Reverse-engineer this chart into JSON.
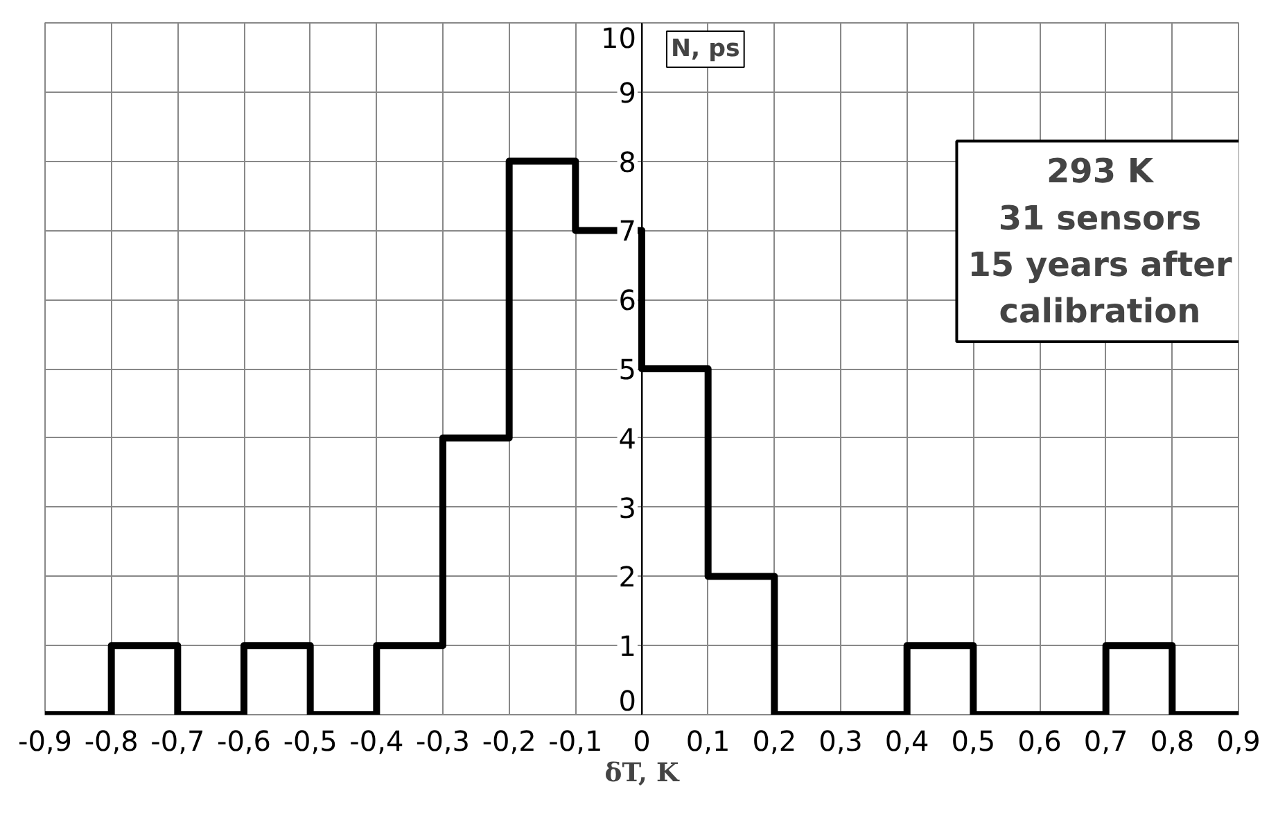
{
  "chart_data": {
    "type": "histogram",
    "xlabel": "δT, K",
    "ylabel": "N, ps",
    "annotations": [
      "293 K\n31 sensors\n15 years after\ncalibration"
    ],
    "bins": [
      -0.9,
      -0.8,
      -0.7,
      -0.6,
      -0.5,
      -0.4,
      -0.3,
      -0.2,
      -0.1,
      0,
      0.1,
      0.2,
      0.3,
      0.4,
      0.5,
      0.6,
      0.7,
      0.8,
      0.9
    ],
    "values": [
      0,
      1,
      0,
      1,
      0,
      1,
      4,
      8,
      7,
      5,
      2,
      0,
      0,
      1,
      0,
      0,
      1,
      0
    ],
    "color": "#000000",
    "grid": true,
    "xlim": [
      -0.9,
      0.9
    ],
    "ylim": [
      0,
      10
    ],
    "xticks": [
      {
        "value": -0.9,
        "label": "-0,9"
      },
      {
        "value": -0.8,
        "label": "-0,8"
      },
      {
        "value": -0.7,
        "label": "-0,7"
      },
      {
        "value": -0.6,
        "label": "-0,6"
      },
      {
        "value": -0.5,
        "label": "-0,5"
      },
      {
        "value": -0.4,
        "label": "-0,4"
      },
      {
        "value": -0.3,
        "label": "-0,3"
      },
      {
        "value": -0.2,
        "label": "-0,2"
      },
      {
        "value": -0.1,
        "label": "-0,1"
      },
      0,
      {
        "value": 0.1,
        "label": "0,1"
      },
      {
        "value": 0.2,
        "label": "0,2"
      },
      {
        "value": 0.3,
        "label": "0,3"
      },
      {
        "value": 0.4,
        "label": "0,4"
      },
      {
        "value": 0.5,
        "label": "0,5"
      },
      {
        "value": 0.6,
        "label": "0,6"
      },
      {
        "value": 0.7,
        "label": "0,7"
      },
      {
        "value": 0.8,
        "label": "0,8"
      },
      {
        "value": 0.9,
        "label": "0,9"
      }
    ],
    "yticks": [
      0,
      1,
      2,
      3,
      4,
      5,
      6,
      7,
      8,
      9,
      10
    ]
  }
}
